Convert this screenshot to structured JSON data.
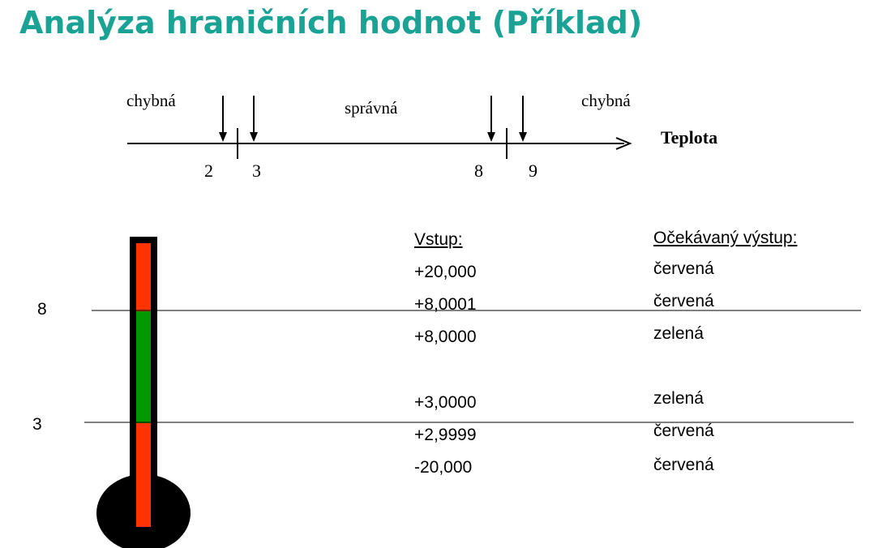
{
  "title": "Analýza hraničních hodnot (Příklad)",
  "number_line": {
    "zone_left": "chybná",
    "zone_middle": "správná",
    "zone_right": "chybná",
    "axis_label": "Teplota",
    "ticks": [
      "2",
      "3",
      "8",
      "9"
    ]
  },
  "thermometer": {
    "label_upper": "8",
    "label_lower": "3",
    "colors": {
      "invalid": "#ff3300",
      "valid": "#009900",
      "frame": "#000000"
    }
  },
  "table": {
    "input_header": "Vstup:",
    "output_header": "Očekávaný výstup:",
    "rows": [
      {
        "input": "+20,000",
        "output": "červená"
      },
      {
        "input": "+8,0001",
        "output": "červená"
      },
      {
        "input": "+8,0000",
        "output": "zelená"
      },
      {
        "input": "+3,0000",
        "output": "zelená"
      },
      {
        "input": "+2,9999",
        "output": "červená"
      },
      {
        "input": "-20,000",
        "output": "červená"
      }
    ]
  }
}
